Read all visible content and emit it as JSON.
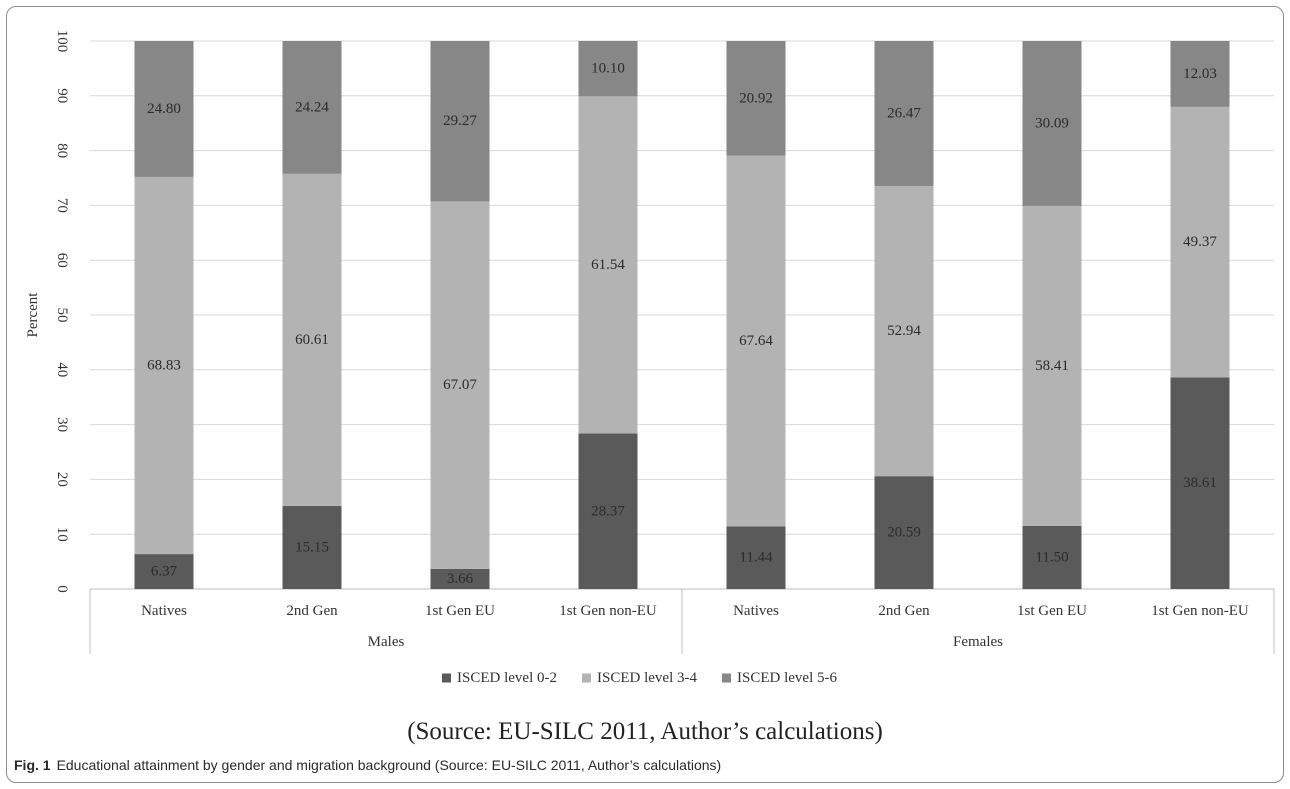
{
  "chart_data": {
    "type": "bar",
    "stacked": true,
    "ylabel": "Percent",
    "ylim": [
      0,
      100
    ],
    "yticks": [
      0,
      10,
      20,
      30,
      40,
      50,
      60,
      70,
      80,
      90,
      100
    ],
    "grid": true,
    "legend_position": "bottom",
    "groups": [
      {
        "name": "Males",
        "categories": [
          "Natives",
          "2nd Gen",
          "1st Gen EU",
          "1st Gen non-EU"
        ]
      },
      {
        "name": "Females",
        "categories": [
          "Natives",
          "2nd Gen",
          "1st Gen EU",
          "1st Gen non-EU"
        ]
      }
    ],
    "series": [
      {
        "name": "ISCED level 0-2",
        "color": "#5a5a5a",
        "values": [
          6.37,
          15.15,
          3.66,
          28.37,
          11.44,
          20.59,
          11.5,
          38.61
        ],
        "labels": [
          "6.37",
          "15.15",
          "3.66",
          "28.37",
          "11.44",
          "20.59",
          "11.50",
          "38.61"
        ]
      },
      {
        "name": "ISCED level 3-4",
        "color": "#b3b3b3",
        "values": [
          68.83,
          60.61,
          67.07,
          61.54,
          67.64,
          52.94,
          58.41,
          49.37
        ],
        "labels": [
          "68.83",
          "60.61",
          "67.07",
          "61.54",
          "67.64",
          "52.94",
          "58.41",
          "49.37"
        ]
      },
      {
        "name": "ISCED level 5-6",
        "color": "#878787",
        "values": [
          24.8,
          24.24,
          29.27,
          10.1,
          20.92,
          26.47,
          30.09,
          12.03
        ],
        "labels": [
          "24.80",
          "24.24",
          "29.27",
          "10.10",
          "20.92",
          "26.47",
          "30.09",
          "12.03"
        ]
      }
    ]
  },
  "source_note": "(Source: EU-SILC 2011, Author’s calculations)",
  "caption": {
    "fig_label": "Fig. 1",
    "text": "Educational attainment by gender and migration background (Source: EU-SILC 2011, Author’s calculations)"
  }
}
